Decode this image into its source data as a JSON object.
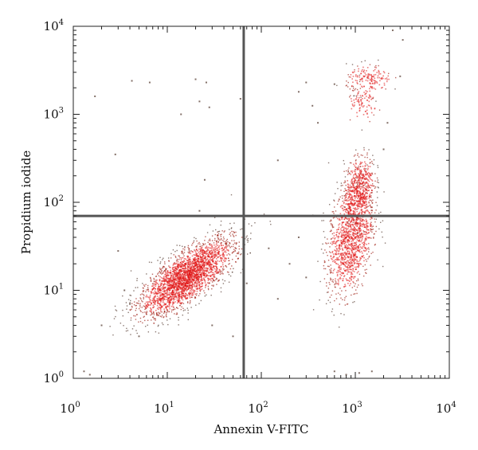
{
  "chart_data": {
    "type": "scatter",
    "title": "",
    "xlabel": "Annexin V-FITC",
    "ylabel": "Propidium iodide",
    "x_scale": "log",
    "y_scale": "log",
    "xlim": [
      1,
      10000
    ],
    "ylim": [
      1,
      10000
    ],
    "xticks": [
      {
        "value": 1,
        "base": "10",
        "exp": "0"
      },
      {
        "value": 10,
        "base": "10",
        "exp": "1"
      },
      {
        "value": 100,
        "base": "10",
        "exp": "2"
      },
      {
        "value": 1000,
        "base": "10",
        "exp": "3"
      },
      {
        "value": 10000,
        "base": "10",
        "exp": "4"
      }
    ],
    "yticks": [
      {
        "value": 1,
        "base": "10",
        "exp": "0"
      },
      {
        "value": 10,
        "base": "10",
        "exp": "1"
      },
      {
        "value": 100,
        "base": "10",
        "exp": "2"
      },
      {
        "value": 1000,
        "base": "10",
        "exp": "3"
      },
      {
        "value": 10000,
        "base": "10",
        "exp": "4"
      }
    ],
    "quadrant_gates": {
      "x": 65,
      "y": 70
    },
    "grid": false,
    "colors": {
      "dense": "#e01010",
      "sparse": "#5a4036",
      "gate": "#555555"
    },
    "populations": [
      {
        "center": [
          16,
          14
        ],
        "spread_log": [
          0.25,
          0.22
        ],
        "correlation": 0.75,
        "count": 2600
      },
      {
        "center": [
          900,
          40
        ],
        "spread_log": [
          0.12,
          0.32
        ],
        "correlation": 0.35,
        "count": 1300
      },
      {
        "center": [
          1100,
          150
        ],
        "spread_log": [
          0.08,
          0.18
        ],
        "correlation": 0.2,
        "count": 500
      },
      {
        "center": [
          1400,
          2500
        ],
        "spread_log": [
          0.12,
          0.08
        ],
        "correlation": 0.0,
        "count": 170
      },
      {
        "center": [
          1200,
          1300
        ],
        "spread_log": [
          0.08,
          0.1
        ],
        "correlation": 0.0,
        "count": 90
      }
    ],
    "scattered_points": [
      [
        1.7,
        1600
      ],
      [
        4.2,
        2400
      ],
      [
        6.5,
        2300
      ],
      [
        20,
        2500
      ],
      [
        26,
        2300
      ],
      [
        22,
        1400
      ],
      [
        28,
        1200
      ],
      [
        14,
        1000
      ],
      [
        2.8,
        350
      ],
      [
        25,
        180
      ],
      [
        22,
        80
      ],
      [
        3,
        28
      ],
      [
        2,
        4
      ],
      [
        5,
        3
      ],
      [
        1.3,
        1.2
      ],
      [
        1.5,
        1.1
      ],
      [
        60,
        1500
      ],
      [
        250,
        1800
      ],
      [
        300,
        2300
      ],
      [
        600,
        2200
      ],
      [
        2500,
        9000
      ],
      [
        3200,
        7000
      ],
      [
        3000,
        2700
      ],
      [
        2200,
        800
      ],
      [
        2000,
        400
      ],
      [
        400,
        800
      ],
      [
        350,
        1250
      ],
      [
        150,
        300
      ],
      [
        50,
        3
      ],
      [
        600,
        1.2
      ],
      [
        800,
        1.1
      ],
      [
        1100,
        1.15
      ],
      [
        1500,
        1.2
      ],
      [
        4,
        7
      ],
      [
        3.5,
        10
      ],
      [
        30,
        4
      ],
      [
        70,
        12
      ],
      [
        200,
        20
      ],
      [
        250,
        40
      ],
      [
        300,
        14
      ],
      [
        150,
        8
      ],
      [
        120,
        30
      ]
    ]
  }
}
